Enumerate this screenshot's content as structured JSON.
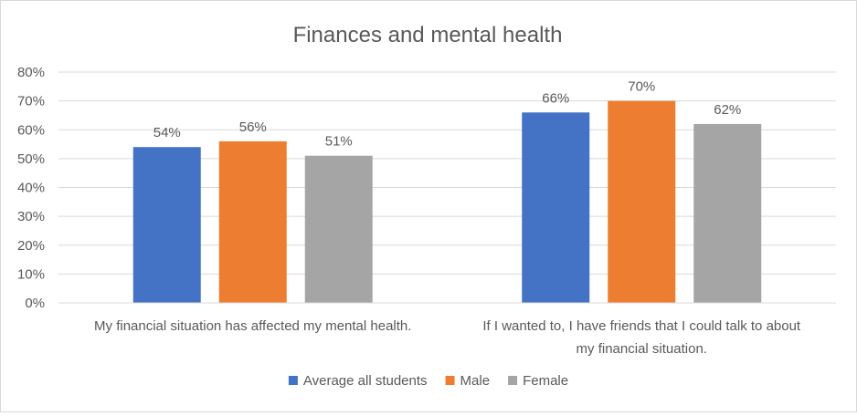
{
  "chart_data": {
    "type": "bar",
    "title": "Finances and mental health",
    "categories": [
      [
        "My financial situation has affected my mental health."
      ],
      [
        "If I wanted to, I have friends that I could talk to about",
        "my financial situation."
      ]
    ],
    "series": [
      {
        "name": "Average all students",
        "color": "#4472c4",
        "values": [
          54,
          66
        ]
      },
      {
        "name": "Male",
        "color": "#ed7d31",
        "values": [
          56,
          70
        ]
      },
      {
        "name": "Female",
        "color": "#a5a5a5",
        "values": [
          51,
          62
        ]
      }
    ],
    "ylim": [
      0,
      80
    ],
    "yticks": [
      0,
      10,
      20,
      30,
      40,
      50,
      60,
      70,
      80
    ],
    "value_format": "percent",
    "grid": true,
    "legend_position": "bottom"
  }
}
